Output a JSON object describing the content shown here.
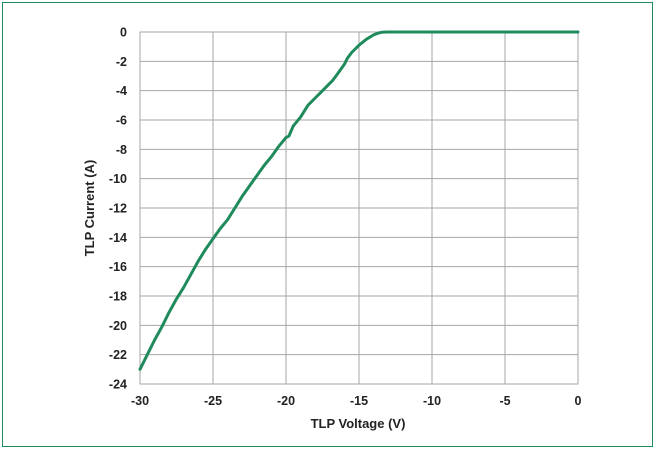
{
  "chart_data": {
    "type": "line",
    "title": "",
    "xlabel": "TLP Voltage (V)",
    "ylabel": "TLP Current (A)",
    "xlim": [
      -30,
      0
    ],
    "ylim": [
      -24,
      0
    ],
    "x_ticks": [
      "-30",
      "-25",
      "-20",
      "-15",
      "-10",
      "-5",
      "0"
    ],
    "y_ticks": [
      "0",
      "-2",
      "-4",
      "-6",
      "-8",
      "-10",
      "-12",
      "-14",
      "-16",
      "-18",
      "-20",
      "-22",
      "-24"
    ],
    "grid": true,
    "legend": "none",
    "series": [
      {
        "color": "#1f8a5c",
        "x": [
          -30,
          -29.5,
          -29,
          -28.5,
          -28,
          -27.5,
          -27,
          -26.5,
          -26,
          -25.5,
          -25,
          -24.5,
          -24,
          -23.5,
          -23,
          -22.5,
          -22,
          -21.5,
          -21,
          -20.5,
          -20,
          -19.8,
          -19.5,
          -19,
          -18.5,
          -18,
          -17.5,
          -17,
          -16.8,
          -16.5,
          -16,
          -15.8,
          -15.5,
          -15,
          -14.5,
          -14,
          -13.7,
          -13.5,
          -13.3,
          -13.1,
          -13,
          -12,
          -10,
          -8,
          -6,
          -4,
          -2,
          0
        ],
        "y": [
          -23.0,
          -22.0,
          -21.0,
          -20.1,
          -19.1,
          -18.2,
          -17.4,
          -16.5,
          -15.6,
          -14.8,
          -14.1,
          -13.4,
          -12.8,
          -12.0,
          -11.2,
          -10.5,
          -9.8,
          -9.1,
          -8.5,
          -7.8,
          -7.2,
          -7.1,
          -6.4,
          -5.8,
          -5.0,
          -4.5,
          -4.0,
          -3.5,
          -3.3,
          -2.9,
          -2.2,
          -1.8,
          -1.4,
          -0.9,
          -0.5,
          -0.2,
          -0.08,
          -0.03,
          -0.01,
          0.0,
          0.0,
          0.0,
          0.0,
          0.0,
          0.0,
          0.0,
          0.0,
          0.0
        ]
      }
    ]
  }
}
